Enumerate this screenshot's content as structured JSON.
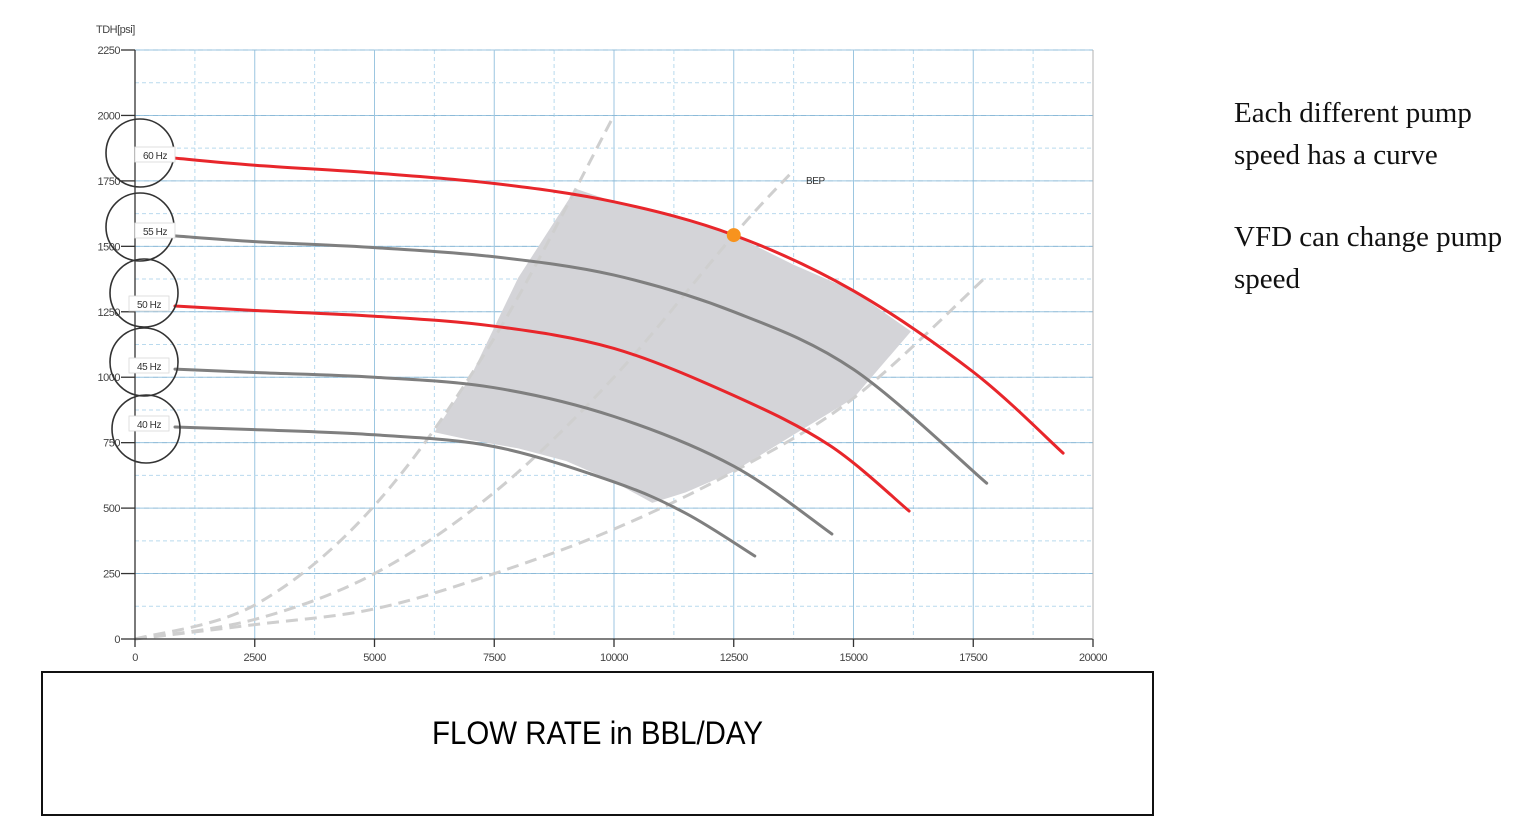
{
  "chart_data": {
    "type": "line",
    "title": "",
    "ylabel": "TDH[psi]",
    "xlabel": "FLOW RATE in BBL/DAY",
    "xlim": [
      0,
      20000
    ],
    "ylim": [
      0,
      2250
    ],
    "x_ticks": [
      0,
      2500,
      5000,
      7500,
      10000,
      12500,
      15000,
      17500,
      20000
    ],
    "y_ticks": [
      0,
      250,
      500,
      750,
      1000,
      1250,
      1500,
      1750,
      2000,
      2250
    ],
    "grid": true,
    "series": [
      {
        "name": "60 Hz",
        "color": "#e8262b",
        "x": [
          0,
          2500,
          5000,
          7500,
          10000,
          12500,
          15000,
          17500,
          19375
        ],
        "y": [
          1837,
          1810,
          1780,
          1740,
          1670,
          1543,
          1330,
          1020,
          710
        ]
      },
      {
        "name": "55 Hz",
        "color": "#7f7f7f",
        "x": [
          0,
          2500,
          5000,
          7500,
          10000,
          12500,
          15000,
          17780
        ],
        "y": [
          1540,
          1518,
          1495,
          1460,
          1390,
          1250,
          1030,
          595
        ]
      },
      {
        "name": "50 Hz",
        "color": "#e8262b",
        "x": [
          0,
          2500,
          5000,
          7500,
          10000,
          12500,
          14500,
          16160
        ],
        "y": [
          1272,
          1255,
          1233,
          1195,
          1110,
          930,
          740,
          489
        ]
      },
      {
        "name": "45 Hz",
        "color": "#7f7f7f",
        "x": [
          0,
          2500,
          5000,
          7500,
          10000,
          12500,
          14550
        ],
        "y": [
          1031,
          1018,
          1000,
          960,
          850,
          660,
          401
        ]
      },
      {
        "name": "40 Hz",
        "color": "#7f7f7f",
        "x": [
          0,
          2500,
          5000,
          7500,
          10000,
          11500,
          12940
        ],
        "y": [
          810,
          800,
          780,
          735,
          600,
          480,
          317
        ]
      }
    ],
    "system_curves": [
      {
        "name": "min",
        "style": "dashed",
        "x": [
          0,
          2500,
          5000,
          7500,
          10000
        ],
        "y": [
          0,
          130,
          510,
          1150,
          2000
        ]
      },
      {
        "name": "BEP",
        "style": "dashed",
        "x": [
          0,
          2500,
          5000,
          7500,
          10000,
          12500,
          13750
        ],
        "y": [
          0,
          75,
          250,
          560,
          1000,
          1543,
          1790
        ]
      },
      {
        "name": "max",
        "style": "dashed",
        "x": [
          0,
          2500,
          5000,
          7500,
          10000,
          12500,
          15000,
          17750
        ],
        "y": [
          0,
          55,
          115,
          250,
          420,
          640,
          920,
          1380
        ]
      }
    ],
    "annotations": [
      {
        "text": "BEP",
        "x": 14000,
        "y": 1750
      },
      {
        "type": "point",
        "label": "BEP operating point",
        "x": 12500,
        "y": 1543,
        "color": "#f7931e"
      }
    ],
    "shaded_region": "Operating range between min and max system curves, from 40 Hz to 60 Hz curves",
    "legend_position": "labels at curve start (left)"
  },
  "axis": {
    "ylabel": "TDH[psi]",
    "x_tick_labels": [
      "0",
      "2500",
      "5000",
      "7500",
      "10000",
      "12500",
      "15000",
      "17500",
      "20000"
    ],
    "y_tick_labels": [
      "0",
      "250",
      "500",
      "750",
      "1000",
      "1250",
      "1500",
      "1750",
      "2000",
      "2250"
    ]
  },
  "curve_labels": [
    "60 Hz",
    "55 Hz",
    "50 Hz",
    "45 Hz",
    "40 Hz"
  ],
  "bep_label": "BEP",
  "xlabel_box": {
    "text": "FLOW RATE in BBL/DAY"
  },
  "notes": [
    "Each different pump speed has a curve",
    "VFD can change pump speed"
  ],
  "colors": {
    "red_curve": "#e8262b",
    "gray_curve": "#7f7f7f",
    "bep_point": "#f7931e",
    "shaded": "#d4d4d8",
    "grid": "#a9cfe6",
    "system_curve": "#cfcfcf"
  }
}
